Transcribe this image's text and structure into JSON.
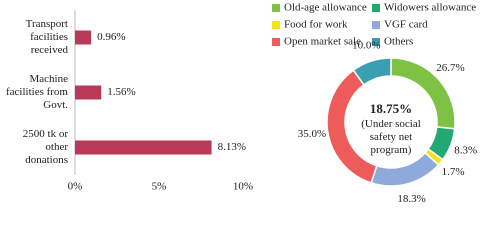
{
  "chart_data": [
    {
      "type": "bar",
      "orientation": "horizontal",
      "categories": [
        "Transport facilities received",
        "Machine facilities from Govt.",
        "2500 tk or other donations"
      ],
      "values": [
        0.96,
        1.56,
        8.13
      ],
      "value_labels": [
        "0.96%",
        "1.56%",
        "8.13%"
      ],
      "color": "#b93a57",
      "xlim": [
        0,
        10
      ],
      "xticks": [
        {
          "value": 0,
          "label": "0%"
        },
        {
          "value": 5,
          "label": "5%"
        },
        {
          "value": 10,
          "label": "10%"
        }
      ]
    },
    {
      "type": "pie",
      "donut": true,
      "categories": [
        "Old-age allowance",
        "Widowers allowance",
        "Food for work",
        "VGF card",
        "Open market sale",
        "Others"
      ],
      "values": [
        26.7,
        8.3,
        1.7,
        18.3,
        35.0,
        10.0
      ],
      "value_labels": [
        "26.7%",
        "8.3%",
        "1.7%",
        "18.3%",
        "35.0%",
        "10.0%"
      ],
      "colors": [
        "#7dc242",
        "#22a873",
        "#f2e21c",
        "#8eaadb",
        "#ee5b5b",
        "#3a9fb2"
      ],
      "center_label": "18.75%",
      "center_sublabel": "(Under social safety net program)"
    }
  ]
}
